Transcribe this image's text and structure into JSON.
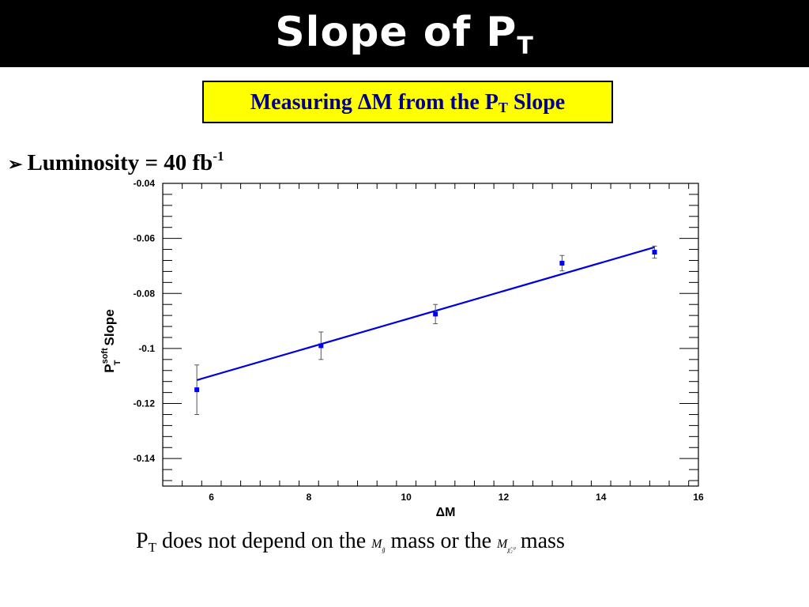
{
  "slide": {
    "title_main": "Slope of P",
    "title_sub": "T",
    "box_text_1": "Measuring ",
    "box_delta": "Δ",
    "box_text_2": "M from the P",
    "box_sub": "T",
    "box_text_3": " Slope",
    "bullet_arrow": "➢",
    "bullet_text": "Luminosity = 40 fb",
    "bullet_sup": "-1",
    "caption_p": "P",
    "caption_p_sub": "T",
    "caption_text_1": "  does not depend on the ",
    "caption_sym1": "M",
    "caption_sym1_sub": "g̃",
    "caption_text_2": "  mass or the ",
    "caption_sym2": "M",
    "caption_sym2_sub": "χ̃₂⁰",
    "caption_text_3": "  mass"
  },
  "chart_data": {
    "type": "scatter",
    "xlabel": "ΔM",
    "ylabel_main": "P",
    "ylabel_sup": "soft",
    "ylabel_sub": "T",
    "ylabel_tail": "Slope",
    "xlim": [
      5,
      16
    ],
    "ylim": [
      -0.15,
      -0.04
    ],
    "xticks": [
      "6",
      "8",
      "10",
      "12",
      "14",
      "16"
    ],
    "yticks": [
      "-0.04",
      "-0.06",
      "-0.08",
      "-0.1",
      "-0.12",
      "-0.14"
    ],
    "points": [
      {
        "x": 5.7,
        "y": -0.115,
        "err": 0.009
      },
      {
        "x": 8.25,
        "y": -0.099,
        "err": 0.005
      },
      {
        "x": 10.6,
        "y": -0.0875,
        "err": 0.0035
      },
      {
        "x": 13.2,
        "y": -0.069,
        "err": 0.0028
      },
      {
        "x": 15.1,
        "y": -0.065,
        "err": 0.0022
      }
    ],
    "fit_line": {
      "x": [
        5.7,
        15.1
      ],
      "y": [
        -0.1115,
        -0.0632
      ]
    },
    "colors": {
      "marker": "#0000ff",
      "fit": "#0000dd",
      "error_bar": "#555555"
    }
  }
}
